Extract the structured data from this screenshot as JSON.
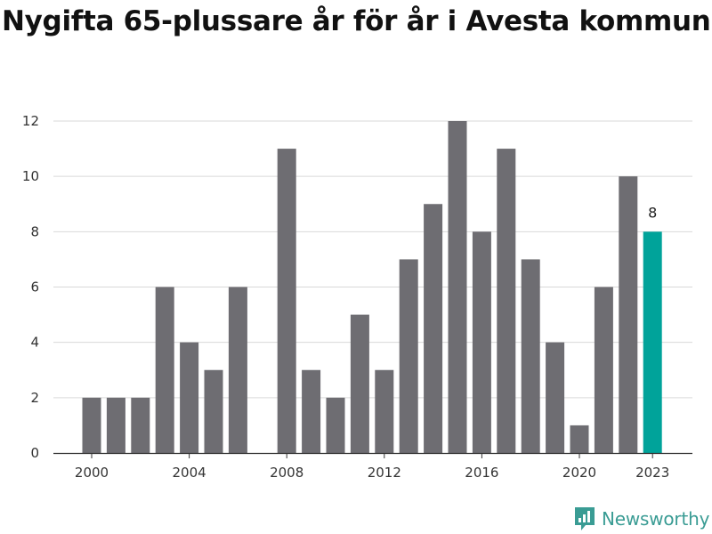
{
  "title": "Nygifta 65-plussare år för år i Avesta kommun",
  "brand": {
    "name": "Newsworthy",
    "icon": "newsworthy-logo-icon"
  },
  "colors": {
    "bar": "#6e6d72",
    "highlight": "#00a39a",
    "grid": "#d9d9d9",
    "brand": "#3a9c94"
  },
  "chart_data": {
    "type": "bar",
    "categories": [
      "2000",
      "2001",
      "2002",
      "2003",
      "2004",
      "2005",
      "2006",
      "2007",
      "2008",
      "2009",
      "2010",
      "2011",
      "2012",
      "2013",
      "2014",
      "2015",
      "2016",
      "2017",
      "2018",
      "2019",
      "2020",
      "2021",
      "2022",
      "2023"
    ],
    "values": [
      2,
      2,
      2,
      6,
      4,
      3,
      6,
      0,
      11,
      3,
      2,
      5,
      3,
      7,
      9,
      12,
      8,
      11,
      7,
      4,
      1,
      6,
      10,
      8
    ],
    "x_tick_labels": [
      "2000",
      "2004",
      "2008",
      "2012",
      "2016",
      "2020",
      "2023"
    ],
    "y_ticks": [
      0,
      2,
      4,
      6,
      8,
      10,
      12
    ],
    "ylim": [
      0,
      12
    ],
    "highlight": {
      "category": "2023",
      "label": "8"
    },
    "grid": true,
    "title": "Nygifta 65-plussare år för år i Avesta kommun",
    "xlabel": "",
    "ylabel": ""
  }
}
